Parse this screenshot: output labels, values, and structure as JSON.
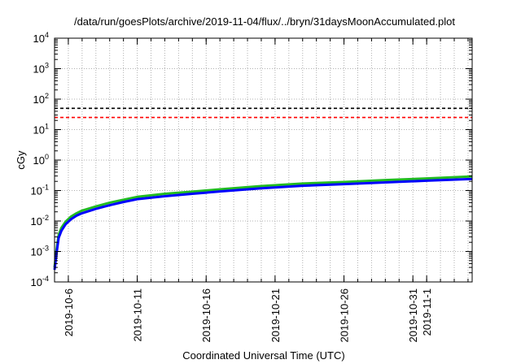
{
  "chart_data": {
    "type": "line",
    "title": "/data/run/goesPlots/archive/2019-11-04/flux/../bryn/31daysMoonAccumulated.plot",
    "xlabel": "Coordinated Universal Time (UTC)",
    "ylabel": "cGy",
    "y_scale": "log",
    "ylim_exp": [
      -4,
      4
    ],
    "y_ticks": [
      {
        "base": "10",
        "exp": "-4",
        "e": -4
      },
      {
        "base": "10",
        "exp": "-3",
        "e": -3
      },
      {
        "base": "10",
        "exp": "-2",
        "e": -2
      },
      {
        "base": "10",
        "exp": "-1",
        "e": -1
      },
      {
        "base": "10",
        "exp": "0",
        "e": 0
      },
      {
        "base": "10",
        "exp": "1",
        "e": 1
      },
      {
        "base": "10",
        "exp": "2",
        "e": 2
      },
      {
        "base": "10",
        "exp": "3",
        "e": 3
      },
      {
        "base": "10",
        "exp": "4",
        "e": 4
      }
    ],
    "x_range_days": [
      0,
      30.3
    ],
    "x_ticks": [
      {
        "label": "2019-10-6",
        "day": 1
      },
      {
        "label": "2019-10-11",
        "day": 6
      },
      {
        "label": "2019-10-16",
        "day": 11
      },
      {
        "label": "2019-10-21",
        "day": 16
      },
      {
        "label": "2019-10-26",
        "day": 21
      },
      {
        "label": "2019-10-31",
        "day": 26
      },
      {
        "label": "2019-11-1",
        "day": 27
      }
    ],
    "grid": true,
    "reference_lines": [
      {
        "value": 50,
        "color": "#000000",
        "style": "dashed"
      },
      {
        "value": 25,
        "color": "#ff0000",
        "style": "dashed"
      }
    ],
    "series": [
      {
        "color": "#22bb22",
        "x": [
          0.0,
          0.15,
          0.3,
          0.5,
          0.8,
          1.2,
          1.6,
          2.0,
          3.0,
          4.0,
          5.0,
          6.0,
          8.0,
          10.0,
          12.0,
          15.0,
          18.0,
          21.0,
          24.0,
          27.0,
          30.3
        ],
        "y": [
          0.0003,
          0.0012,
          0.0035,
          0.006,
          0.0095,
          0.014,
          0.018,
          0.022,
          0.03,
          0.04,
          0.05,
          0.062,
          0.078,
          0.092,
          0.11,
          0.14,
          0.17,
          0.19,
          0.22,
          0.25,
          0.29
        ]
      },
      {
        "color": "#0000ff",
        "x": [
          0.0,
          0.15,
          0.3,
          0.5,
          0.8,
          1.2,
          1.6,
          2.0,
          3.0,
          4.0,
          5.0,
          6.0,
          8.0,
          10.0,
          12.0,
          15.0,
          18.0,
          21.0,
          24.0,
          27.0,
          30.3
        ],
        "y": [
          0.00025,
          0.0009,
          0.0028,
          0.0048,
          0.0078,
          0.0115,
          0.015,
          0.018,
          0.025,
          0.033,
          0.042,
          0.052,
          0.065,
          0.078,
          0.093,
          0.118,
          0.143,
          0.162,
          0.185,
          0.21,
          0.24
        ]
      }
    ]
  }
}
